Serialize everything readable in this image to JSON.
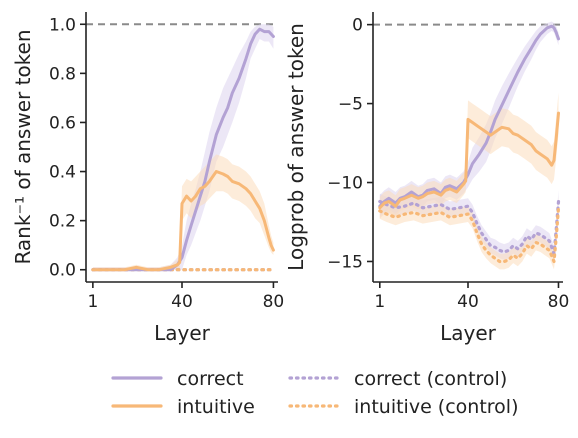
{
  "chart_data": [
    {
      "type": "line",
      "xlabel": "Layer",
      "ylabel": "Rank⁻¹ of answer token",
      "xlim": [
        -2,
        82
      ],
      "ylim": [
        -0.05,
        1.05
      ],
      "xticks": [
        1,
        40,
        80
      ],
      "yticks": [
        0.0,
        0.2,
        0.4,
        0.6,
        0.8,
        1.0
      ],
      "ytick_labels": [
        "0.0",
        "0.2",
        "0.4",
        "0.6",
        "0.8",
        "1.0"
      ],
      "reference_line": 1.0,
      "series": [
        {
          "name": "correct",
          "style": "solid",
          "color": "#b3a2d4",
          "band_color": "#ddd4ef",
          "x": [
            1,
            5,
            10,
            15,
            20,
            25,
            30,
            35,
            38,
            40,
            42,
            44,
            46,
            48,
            50,
            52,
            55,
            58,
            60,
            62,
            65,
            68,
            70,
            72,
            74,
            76,
            78,
            80
          ],
          "y": [
            0.0,
            0.0,
            0.0,
            0.0,
            0.0,
            0.0,
            0.0,
            0.0,
            0.02,
            0.05,
            0.12,
            0.18,
            0.24,
            0.3,
            0.36,
            0.44,
            0.55,
            0.62,
            0.66,
            0.72,
            0.78,
            0.86,
            0.92,
            0.96,
            0.98,
            0.97,
            0.97,
            0.95
          ],
          "lo": [
            0.0,
            0.0,
            0.0,
            0.0,
            0.0,
            0.0,
            0.0,
            0.0,
            0.0,
            0.0,
            0.06,
            0.1,
            0.15,
            0.2,
            0.26,
            0.32,
            0.44,
            0.5,
            0.55,
            0.6,
            0.68,
            0.78,
            0.86,
            0.9,
            0.94,
            0.93,
            0.93,
            0.9
          ],
          "hi": [
            0.01,
            0.01,
            0.01,
            0.01,
            0.01,
            0.01,
            0.01,
            0.02,
            0.05,
            0.1,
            0.2,
            0.27,
            0.33,
            0.4,
            0.48,
            0.56,
            0.66,
            0.74,
            0.78,
            0.82,
            0.88,
            0.93,
            0.97,
            0.99,
            1.0,
            1.0,
            1.0,
            0.99
          ]
        },
        {
          "name": "intuitive",
          "style": "solid",
          "color": "#f7b877",
          "band_color": "#fbdcbc",
          "x": [
            1,
            5,
            10,
            15,
            20,
            25,
            30,
            35,
            38,
            39,
            40,
            42,
            44,
            46,
            48,
            50,
            52,
            55,
            58,
            60,
            62,
            65,
            68,
            70,
            72,
            74,
            76,
            78,
            79,
            80
          ],
          "y": [
            0.0,
            0.0,
            0.0,
            0.0,
            0.01,
            0.0,
            0.0,
            0.01,
            0.02,
            0.03,
            0.27,
            0.3,
            0.28,
            0.3,
            0.33,
            0.34,
            0.36,
            0.4,
            0.39,
            0.38,
            0.36,
            0.35,
            0.33,
            0.31,
            0.28,
            0.25,
            0.2,
            0.13,
            0.1,
            0.08
          ],
          "lo": [
            0.0,
            0.0,
            0.0,
            0.0,
            0.0,
            0.0,
            0.0,
            0.0,
            0.0,
            0.0,
            0.2,
            0.23,
            0.21,
            0.23,
            0.26,
            0.27,
            0.29,
            0.32,
            0.32,
            0.31,
            0.29,
            0.28,
            0.26,
            0.24,
            0.21,
            0.19,
            0.14,
            0.09,
            0.07,
            0.06
          ],
          "hi": [
            0.01,
            0.01,
            0.01,
            0.01,
            0.02,
            0.01,
            0.01,
            0.02,
            0.04,
            0.06,
            0.34,
            0.37,
            0.36,
            0.38,
            0.4,
            0.42,
            0.44,
            0.47,
            0.46,
            0.45,
            0.43,
            0.42,
            0.4,
            0.38,
            0.35,
            0.32,
            0.27,
            0.18,
            0.14,
            0.11
          ]
        },
        {
          "name": "correct (control)",
          "style": "dotted",
          "color": "#b3a2d4",
          "band_color": "#ddd4ef",
          "x": [
            1,
            10,
            20,
            30,
            40,
            50,
            60,
            70,
            80
          ],
          "y": [
            0.0,
            0.0,
            0.0,
            0.0,
            0.0,
            0.0,
            0.0,
            0.0,
            0.0
          ],
          "lo": [
            0,
            0,
            0,
            0,
            0,
            0,
            0,
            0,
            0
          ],
          "hi": [
            0,
            0,
            0,
            0,
            0,
            0,
            0,
            0,
            0
          ]
        },
        {
          "name": "intuitive (control)",
          "style": "dotted",
          "color": "#f7b877",
          "band_color": "#fbdcbc",
          "x": [
            1,
            10,
            20,
            30,
            40,
            50,
            60,
            70,
            80
          ],
          "y": [
            0.0,
            0.0,
            0.0,
            0.0,
            0.0,
            0.0,
            0.0,
            0.0,
            0.0
          ],
          "lo": [
            0,
            0,
            0,
            0,
            0,
            0,
            0,
            0,
            0
          ],
          "hi": [
            0,
            0,
            0,
            0,
            0,
            0,
            0,
            0,
            0
          ]
        }
      ]
    },
    {
      "type": "line",
      "xlabel": "Layer",
      "ylabel": "Logprob of answer token",
      "xlim": [
        -2,
        82
      ],
      "ylim": [
        -16.3,
        0.8
      ],
      "xticks": [
        1,
        40,
        80
      ],
      "yticks": [
        -15,
        -10,
        -5,
        0
      ],
      "ytick_labels": [
        "−15",
        "−10",
        "−5",
        "0"
      ],
      "reference_line": 0,
      "series": [
        {
          "name": "correct",
          "style": "solid",
          "color": "#b3a2d4",
          "band_color": "#ddd4ef",
          "x": [
            1,
            3,
            5,
            8,
            10,
            12,
            15,
            18,
            20,
            22,
            25,
            28,
            30,
            32,
            35,
            38,
            40,
            42,
            45,
            48,
            50,
            52,
            55,
            58,
            60,
            62,
            65,
            68,
            70,
            72,
            75,
            77,
            78,
            79,
            80
          ],
          "y": [
            -11.5,
            -11.2,
            -11.0,
            -11.3,
            -11.0,
            -10.9,
            -10.6,
            -10.9,
            -10.8,
            -10.5,
            -10.4,
            -10.7,
            -10.3,
            -10.2,
            -10.4,
            -10.0,
            -9.5,
            -8.8,
            -8.2,
            -7.5,
            -6.8,
            -6.0,
            -5.1,
            -4.2,
            -3.6,
            -3.0,
            -2.2,
            -1.5,
            -1.0,
            -0.6,
            -0.2,
            -0.1,
            -0.2,
            -0.5,
            -0.9
          ],
          "lo": [
            -12.2,
            -11.9,
            -11.7,
            -12.0,
            -11.7,
            -11.6,
            -11.3,
            -11.6,
            -11.5,
            -11.2,
            -11.1,
            -11.4,
            -11.0,
            -10.9,
            -11.1,
            -10.7,
            -10.3,
            -9.8,
            -9.3,
            -8.7,
            -8.0,
            -7.2,
            -6.3,
            -5.3,
            -4.6,
            -3.9,
            -3.0,
            -2.2,
            -1.6,
            -1.1,
            -0.6,
            -0.4,
            -0.5,
            -0.9,
            -1.3
          ],
          "hi": [
            -10.8,
            -10.5,
            -10.3,
            -10.6,
            -10.3,
            -10.2,
            -9.9,
            -10.2,
            -10.1,
            -9.8,
            -9.7,
            -10.0,
            -9.6,
            -9.5,
            -9.7,
            -9.3,
            -8.7,
            -7.8,
            -7.1,
            -6.3,
            -5.6,
            -4.8,
            -3.9,
            -3.1,
            -2.6,
            -2.1,
            -1.4,
            -0.8,
            -0.4,
            -0.1,
            0.1,
            0.2,
            0.1,
            -0.1,
            -0.5
          ]
        },
        {
          "name": "intuitive",
          "style": "solid",
          "color": "#f7b877",
          "band_color": "#fbdcbc",
          "x": [
            1,
            3,
            5,
            8,
            10,
            12,
            15,
            18,
            20,
            22,
            25,
            28,
            30,
            32,
            35,
            38,
            39,
            40,
            42,
            45,
            48,
            50,
            52,
            55,
            58,
            60,
            62,
            65,
            68,
            70,
            72,
            75,
            77,
            78,
            79,
            80
          ],
          "y": [
            -11.6,
            -11.3,
            -11.2,
            -11.5,
            -11.1,
            -11.0,
            -10.8,
            -11.0,
            -10.9,
            -10.7,
            -10.6,
            -10.8,
            -10.5,
            -10.4,
            -10.6,
            -10.1,
            -9.9,
            -6.0,
            -6.2,
            -6.5,
            -6.8,
            -7.0,
            -6.8,
            -6.5,
            -6.6,
            -6.9,
            -7.0,
            -7.3,
            -7.6,
            -8.0,
            -8.2,
            -8.5,
            -8.9,
            -8.6,
            -7.2,
            -5.6
          ],
          "lo": [
            -12.3,
            -12.0,
            -11.9,
            -12.2,
            -11.8,
            -11.7,
            -11.5,
            -11.7,
            -11.6,
            -11.4,
            -11.3,
            -11.5,
            -11.2,
            -11.1,
            -11.3,
            -10.8,
            -10.6,
            -7.2,
            -7.4,
            -7.7,
            -8.0,
            -8.2,
            -8.0,
            -7.7,
            -7.8,
            -8.1,
            -8.2,
            -8.5,
            -8.8,
            -9.2,
            -9.4,
            -9.7,
            -10.1,
            -9.8,
            -8.5,
            -6.9
          ],
          "hi": [
            -10.9,
            -10.6,
            -10.5,
            -10.8,
            -10.4,
            -10.3,
            -10.1,
            -10.3,
            -10.2,
            -10.0,
            -9.9,
            -10.1,
            -9.8,
            -9.7,
            -9.9,
            -9.4,
            -9.2,
            -4.8,
            -5.0,
            -5.3,
            -5.6,
            -5.8,
            -5.6,
            -5.3,
            -5.4,
            -5.7,
            -5.8,
            -6.1,
            -6.4,
            -6.8,
            -7.0,
            -7.3,
            -7.7,
            -7.4,
            -5.9,
            -4.3
          ]
        },
        {
          "name": "correct (control)",
          "style": "dotted",
          "color": "#b3a2d4",
          "band_color": "#ddd4ef",
          "x": [
            1,
            4,
            8,
            12,
            16,
            20,
            24,
            28,
            32,
            36,
            40,
            42,
            44,
            46,
            48,
            50,
            52,
            54,
            56,
            58,
            60,
            62,
            64,
            66,
            68,
            70,
            72,
            74,
            76,
            78,
            79,
            80
          ],
          "y": [
            -11.2,
            -11.4,
            -11.6,
            -11.5,
            -11.3,
            -11.6,
            -11.5,
            -11.4,
            -11.7,
            -11.6,
            -11.5,
            -11.9,
            -12.6,
            -13.2,
            -13.6,
            -14.0,
            -14.1,
            -14.3,
            -14.4,
            -14.3,
            -14.0,
            -14.2,
            -13.9,
            -13.4,
            -13.6,
            -13.2,
            -13.3,
            -13.5,
            -13.7,
            -14.5,
            -13.0,
            -11.2
          ],
          "lo": [
            -11.7,
            -11.9,
            -12.1,
            -12.0,
            -11.8,
            -12.1,
            -12.0,
            -11.9,
            -12.2,
            -12.1,
            -12.0,
            -12.4,
            -13.1,
            -13.7,
            -14.1,
            -14.5,
            -14.6,
            -14.8,
            -14.9,
            -14.8,
            -14.5,
            -14.7,
            -14.4,
            -13.9,
            -14.1,
            -13.7,
            -13.8,
            -14.0,
            -14.2,
            -15.0,
            -13.6,
            -11.9
          ],
          "hi": [
            -10.7,
            -10.9,
            -11.1,
            -11.0,
            -10.8,
            -11.1,
            -11.0,
            -10.9,
            -11.2,
            -11.1,
            -11.0,
            -11.4,
            -12.1,
            -12.7,
            -13.1,
            -13.5,
            -13.6,
            -13.8,
            -13.9,
            -13.8,
            -13.5,
            -13.7,
            -13.4,
            -12.9,
            -13.1,
            -12.7,
            -12.8,
            -13.0,
            -13.2,
            -14.0,
            -12.4,
            -10.5
          ]
        },
        {
          "name": "intuitive (control)",
          "style": "dotted",
          "color": "#f7b877",
          "band_color": "#fbdcbc",
          "x": [
            1,
            4,
            8,
            12,
            16,
            20,
            24,
            28,
            32,
            36,
            40,
            42,
            44,
            46,
            48,
            50,
            52,
            54,
            56,
            58,
            60,
            62,
            64,
            66,
            68,
            70,
            72,
            74,
            76,
            78,
            79,
            80
          ],
          "y": [
            -11.8,
            -12.0,
            -12.2,
            -12.0,
            -11.9,
            -12.1,
            -12.0,
            -11.9,
            -12.2,
            -12.1,
            -12.0,
            -12.4,
            -13.2,
            -13.9,
            -14.3,
            -14.6,
            -14.8,
            -15.0,
            -15.0,
            -14.9,
            -14.6,
            -14.8,
            -14.5,
            -14.0,
            -14.2,
            -13.8,
            -13.9,
            -14.1,
            -14.3,
            -15.0,
            -13.5,
            -11.6
          ],
          "lo": [
            -12.3,
            -12.5,
            -12.7,
            -12.5,
            -12.4,
            -12.6,
            -12.5,
            -12.4,
            -12.7,
            -12.6,
            -12.5,
            -12.9,
            -13.7,
            -14.4,
            -14.8,
            -15.1,
            -15.3,
            -15.5,
            -15.5,
            -15.4,
            -15.1,
            -15.3,
            -15.0,
            -14.5,
            -14.7,
            -14.3,
            -14.4,
            -14.6,
            -14.8,
            -15.5,
            -14.1,
            -12.3
          ],
          "hi": [
            -11.3,
            -11.5,
            -11.7,
            -11.5,
            -11.4,
            -11.6,
            -11.5,
            -11.4,
            -11.7,
            -11.6,
            -11.5,
            -11.9,
            -12.7,
            -13.4,
            -13.8,
            -14.1,
            -14.3,
            -14.5,
            -14.5,
            -14.4,
            -14.1,
            -14.3,
            -14.0,
            -13.5,
            -13.7,
            -13.3,
            -13.4,
            -13.6,
            -13.8,
            -14.5,
            -12.9,
            -10.9
          ]
        }
      ]
    }
  ],
  "legend": {
    "placement": "bottom",
    "items": [
      {
        "label": "correct",
        "style": "solid",
        "color": "#b3a2d4"
      },
      {
        "label": "intuitive",
        "style": "solid",
        "color": "#f7b877"
      },
      {
        "label": "correct (control)",
        "style": "dotted",
        "color": "#b3a2d4"
      },
      {
        "label": "intuitive (control)",
        "style": "dotted",
        "color": "#f7b877"
      }
    ]
  }
}
